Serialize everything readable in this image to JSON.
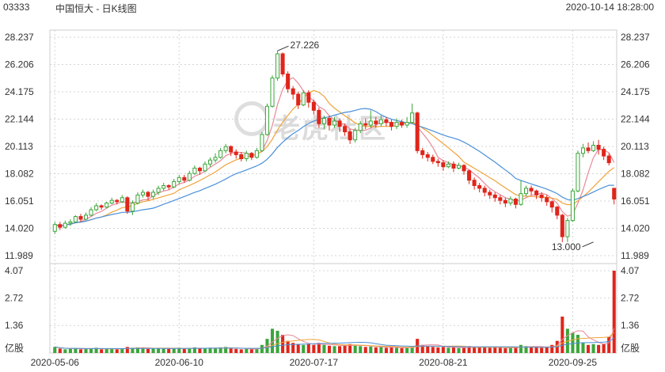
{
  "header": {
    "code": "03333",
    "name": "中国恒大 - 日K线图",
    "datetime": "2020-10-14 18:28:00"
  },
  "watermark": {
    "text": "老虎社区",
    "icon": "tiger-logo-icon"
  },
  "colors": {
    "up": "#3aa63a",
    "down": "#e0251b",
    "ma5": "#e8899a",
    "ma10": "#f0a33a",
    "ma20": "#4a90d9",
    "grid": "#d4d4d4"
  },
  "chart_data": {
    "type": "candlestick",
    "price_axis": {
      "ticks": [
        11.989,
        14.02,
        16.051,
        18.082,
        20.113,
        22.144,
        24.175,
        26.206,
        28.237
      ],
      "labels": [
        "11.989",
        "14.020",
        "16.051",
        "18.082",
        "20.113",
        "22.144",
        "24.175",
        "26.206",
        "28.237"
      ],
      "range": [
        11.989,
        28.237
      ]
    },
    "volume_axis": {
      "ticks": [
        0,
        1.36,
        2.72,
        4.07
      ],
      "labels": [
        "亿股",
        "1.36",
        "2.72",
        "4.07"
      ],
      "range": [
        0,
        4.07
      ],
      "unit": "亿股"
    },
    "x_labels": [
      "2020-05-06",
      "2020-06-10",
      "2020-07-17",
      "2020-08-21",
      "2020-09-25"
    ],
    "x_label_index": [
      0,
      24,
      50,
      75,
      100
    ],
    "annotations": [
      {
        "label": "27.226",
        "index": 43,
        "value": 27.226
      },
      {
        "label": "13.000",
        "index": 104,
        "value": 13.0
      }
    ],
    "candles": [
      [
        13.8,
        14.3,
        13.6,
        14.5
      ],
      [
        14.3,
        14.1,
        13.9,
        14.5
      ],
      [
        14.1,
        14.4,
        14.0,
        14.6
      ],
      [
        14.4,
        14.5,
        14.2,
        14.7
      ],
      [
        14.5,
        14.9,
        14.4,
        15.0
      ],
      [
        14.9,
        14.7,
        14.5,
        15.1
      ],
      [
        14.7,
        15.0,
        14.6,
        15.2
      ],
      [
        15.0,
        15.4,
        14.9,
        15.6
      ],
      [
        15.4,
        15.7,
        15.3,
        15.9
      ],
      [
        15.7,
        15.6,
        15.4,
        15.8
      ],
      [
        15.6,
        15.9,
        15.5,
        16.0
      ],
      [
        15.9,
        16.1,
        15.8,
        16.3
      ],
      [
        16.1,
        16.0,
        15.8,
        16.2
      ],
      [
        16.0,
        16.3,
        15.9,
        16.5
      ],
      [
        16.3,
        15.3,
        15.1,
        16.4
      ],
      [
        15.3,
        15.9,
        15.0,
        16.1
      ],
      [
        15.9,
        16.5,
        15.8,
        16.7
      ],
      [
        16.5,
        16.7,
        16.3,
        16.9
      ],
      [
        16.7,
        16.4,
        16.1,
        16.8
      ],
      [
        16.4,
        16.7,
        16.2,
        16.9
      ],
      [
        16.7,
        17.0,
        16.5,
        17.2
      ],
      [
        17.0,
        17.2,
        16.8,
        17.4
      ],
      [
        17.2,
        17.1,
        16.9,
        17.3
      ],
      [
        17.1,
        17.5,
        17.0,
        17.7
      ],
      [
        17.5,
        17.8,
        17.3,
        18.0
      ],
      [
        17.8,
        17.6,
        17.4,
        18.0
      ],
      [
        17.6,
        18.1,
        17.5,
        18.3
      ],
      [
        18.1,
        18.5,
        18.0,
        18.7
      ],
      [
        18.5,
        18.3,
        18.0,
        18.6
      ],
      [
        18.3,
        18.8,
        18.2,
        19.0
      ],
      [
        18.8,
        19.1,
        18.6,
        19.3
      ],
      [
        19.1,
        19.3,
        18.9,
        19.6
      ],
      [
        19.3,
        19.8,
        19.2,
        20.0
      ],
      [
        19.8,
        20.1,
        19.6,
        20.3
      ],
      [
        20.1,
        19.7,
        19.4,
        20.2
      ],
      [
        19.7,
        19.5,
        19.2,
        19.9
      ],
      [
        19.5,
        19.2,
        19.0,
        19.7
      ],
      [
        19.2,
        19.6,
        19.0,
        19.8
      ],
      [
        19.6,
        19.3,
        19.1,
        19.7
      ],
      [
        19.3,
        19.8,
        19.2,
        20.0
      ],
      [
        19.8,
        21.0,
        19.7,
        21.2
      ],
      [
        21.0,
        23.1,
        20.9,
        23.3
      ],
      [
        23.1,
        25.2,
        23.0,
        25.4
      ],
      [
        25.2,
        27.0,
        25.0,
        27.226
      ],
      [
        27.0,
        25.5,
        25.3,
        27.1
      ],
      [
        25.5,
        24.4,
        24.1,
        25.7
      ],
      [
        24.4,
        24.0,
        23.6,
        24.6
      ],
      [
        24.0,
        23.2,
        22.9,
        24.2
      ],
      [
        23.2,
        24.1,
        23.1,
        24.3
      ],
      [
        24.1,
        23.4,
        23.0,
        24.3
      ],
      [
        23.4,
        22.8,
        22.5,
        23.6
      ],
      [
        22.8,
        21.8,
        21.5,
        23.0
      ],
      [
        21.8,
        22.2,
        21.4,
        22.4
      ],
      [
        22.2,
        21.7,
        21.3,
        22.4
      ],
      [
        21.7,
        22.0,
        21.5,
        22.3
      ],
      [
        22.0,
        21.6,
        21.2,
        22.2
      ],
      [
        21.6,
        21.2,
        20.9,
        21.8
      ],
      [
        21.2,
        20.6,
        20.3,
        21.4
      ],
      [
        20.6,
        21.3,
        20.4,
        21.5
      ],
      [
        21.3,
        21.8,
        21.1,
        22.0
      ],
      [
        21.8,
        21.7,
        21.4,
        22.2
      ],
      [
        21.7,
        22.0,
        21.5,
        22.8
      ],
      [
        22.0,
        21.8,
        21.5,
        22.3
      ],
      [
        21.8,
        22.1,
        21.6,
        22.4
      ],
      [
        22.1,
        21.9,
        21.6,
        22.3
      ],
      [
        21.9,
        21.6,
        21.3,
        22.1
      ],
      [
        21.6,
        21.9,
        21.4,
        22.2
      ],
      [
        21.9,
        21.7,
        21.5,
        22.1
      ],
      [
        21.7,
        21.9,
        21.5,
        22.3
      ],
      [
        21.9,
        22.6,
        21.8,
        23.3
      ],
      [
        22.6,
        19.8,
        19.6,
        22.7
      ],
      [
        19.8,
        19.5,
        19.2,
        20.0
      ],
      [
        19.5,
        19.3,
        19.0,
        19.7
      ],
      [
        19.3,
        19.0,
        18.8,
        19.5
      ],
      [
        19.0,
        18.9,
        18.6,
        19.2
      ],
      [
        18.9,
        18.6,
        18.3,
        19.1
      ],
      [
        18.6,
        18.8,
        18.5,
        19.0
      ],
      [
        18.8,
        18.5,
        18.2,
        19.0
      ],
      [
        18.5,
        18.7,
        18.4,
        18.9
      ],
      [
        18.7,
        18.3,
        18.0,
        18.8
      ],
      [
        18.3,
        17.6,
        17.3,
        18.4
      ],
      [
        17.6,
        17.2,
        16.9,
        17.8
      ],
      [
        17.2,
        17.0,
        16.7,
        17.4
      ],
      [
        17.0,
        16.7,
        16.4,
        17.2
      ],
      [
        16.7,
        16.5,
        16.2,
        16.9
      ],
      [
        16.5,
        16.3,
        16.0,
        16.7
      ],
      [
        16.3,
        16.1,
        15.8,
        16.5
      ],
      [
        16.1,
        15.9,
        15.6,
        16.3
      ],
      [
        15.9,
        16.2,
        15.7,
        16.4
      ],
      [
        16.2,
        15.8,
        15.5,
        16.3
      ],
      [
        15.8,
        16.6,
        15.7,
        17.6
      ],
      [
        16.6,
        17.0,
        16.4,
        17.2
      ],
      [
        17.0,
        16.8,
        16.5,
        17.2
      ],
      [
        16.8,
        16.5,
        16.2,
        16.9
      ],
      [
        16.5,
        16.3,
        16.0,
        16.7
      ],
      [
        16.3,
        16.0,
        15.7,
        16.5
      ],
      [
        16.0,
        15.6,
        15.2,
        16.1
      ],
      [
        15.6,
        15.0,
        14.7,
        15.7
      ],
      [
        15.0,
        13.4,
        13.0,
        15.1
      ],
      [
        13.4,
        14.6,
        13.0,
        14.8
      ],
      [
        14.6,
        16.8,
        14.5,
        17.0
      ],
      [
        16.8,
        19.6,
        16.7,
        19.8
      ],
      [
        19.6,
        20.0,
        19.3,
        20.3
      ],
      [
        20.0,
        19.8,
        19.6,
        20.4
      ],
      [
        19.8,
        20.2,
        19.7,
        20.5
      ],
      [
        20.2,
        19.9,
        19.5,
        20.6
      ],
      [
        19.9,
        19.4,
        19.1,
        20.1
      ],
      [
        19.4,
        18.9,
        18.7,
        19.6
      ],
      [
        17.0,
        16.2,
        15.8,
        17.0
      ]
    ],
    "volume": [
      0.3,
      0.22,
      0.18,
      0.2,
      0.25,
      0.18,
      0.2,
      0.22,
      0.26,
      0.18,
      0.2,
      0.22,
      0.18,
      0.24,
      0.3,
      0.26,
      0.28,
      0.24,
      0.2,
      0.22,
      0.24,
      0.22,
      0.2,
      0.24,
      0.26,
      0.2,
      0.24,
      0.28,
      0.22,
      0.24,
      0.26,
      0.22,
      0.28,
      0.3,
      0.22,
      0.2,
      0.18,
      0.2,
      0.18,
      0.22,
      0.4,
      0.7,
      1.2,
      1.1,
      0.9,
      0.6,
      0.5,
      0.45,
      0.4,
      0.45,
      0.4,
      0.5,
      0.4,
      0.36,
      0.34,
      0.34,
      0.4,
      0.44,
      0.36,
      0.34,
      0.3,
      0.32,
      0.28,
      0.3,
      0.26,
      0.28,
      0.26,
      0.24,
      0.26,
      0.3,
      0.7,
      0.4,
      0.34,
      0.3,
      0.28,
      0.3,
      0.26,
      0.28,
      0.24,
      0.26,
      0.34,
      0.3,
      0.28,
      0.3,
      0.26,
      0.28,
      0.26,
      0.24,
      0.26,
      0.28,
      0.4,
      0.34,
      0.3,
      0.28,
      0.26,
      0.3,
      0.4,
      0.6,
      1.8,
      1.2,
      1.0,
      0.9,
      0.5,
      0.4,
      0.44,
      0.4,
      0.46,
      0.8,
      4.07
    ]
  }
}
